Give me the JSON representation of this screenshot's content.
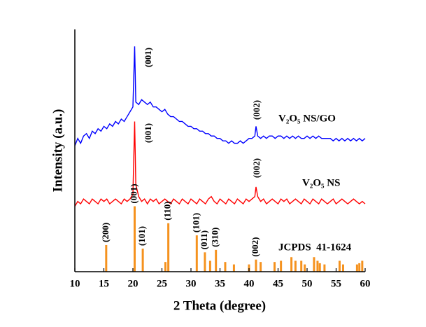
{
  "chart_data": {
    "type": "line",
    "x_label": "2 Theta (degree)",
    "y_label": "Intensity (a.u.)",
    "xlim": [
      10,
      60
    ],
    "xticks": [
      10,
      15,
      20,
      25,
      30,
      35,
      40,
      45,
      50,
      55,
      60
    ],
    "ylim": [
      0,
      100
    ],
    "annotations": [
      "(001)",
      "(002)",
      "(001)",
      "(002)"
    ],
    "x": [
      10,
      10.5,
      11,
      11.5,
      12,
      12.5,
      13,
      13.5,
      14,
      14.5,
      15,
      15.5,
      16,
      16.5,
      17,
      17.5,
      18,
      18.5,
      19,
      19.5,
      20,
      20.3,
      20.5,
      21,
      21.5,
      22,
      22.5,
      23,
      23.5,
      24,
      24.5,
      25,
      25.5,
      26,
      26.5,
      27,
      27.5,
      28,
      28.5,
      29,
      29.5,
      30,
      30.5,
      31,
      31.5,
      32,
      32.5,
      33,
      33.5,
      34,
      34.5,
      35,
      35.5,
      36,
      36.5,
      37,
      37.5,
      38,
      38.5,
      39,
      39.5,
      40,
      40.5,
      41,
      41.2,
      41.5,
      42,
      42.5,
      43,
      43.5,
      44,
      44.5,
      45,
      45.5,
      46,
      46.5,
      47,
      47.5,
      48,
      48.5,
      49,
      49.5,
      50,
      50.5,
      51,
      51.5,
      52,
      52.5,
      53,
      53.5,
      54,
      54.5,
      55,
      55.5,
      56,
      56.5,
      57,
      57.5,
      58,
      58.5,
      59,
      59.5,
      60
    ],
    "series": [
      {
        "name": "V₂O₅ NS/GO",
        "color": "#0000ff",
        "values": [
          52,
          55,
          53,
          56,
          57,
          55,
          58,
          57,
          59,
          58,
          60,
          59,
          61,
          60,
          62,
          61,
          63,
          62,
          64,
          66,
          68,
          93,
          70,
          69,
          71,
          70,
          69,
          70,
          68,
          68,
          67,
          66,
          67,
          65,
          64,
          64,
          63,
          62,
          62,
          61,
          60,
          60,
          59,
          59,
          58,
          58,
          57,
          57,
          56,
          56,
          55,
          55,
          54,
          54,
          53,
          54,
          53,
          53,
          54,
          53,
          54,
          55,
          55,
          56,
          60,
          56,
          55,
          56,
          55,
          56,
          56,
          55,
          56,
          56,
          55,
          56,
          55,
          56,
          55,
          56,
          55,
          55,
          56,
          55,
          56,
          55,
          56,
          55,
          55,
          55,
          55,
          54,
          55,
          54,
          55,
          54,
          55,
          54,
          55,
          54,
          55,
          54,
          55
        ]
      },
      {
        "name": "V₂O₅ NS",
        "color": "#ff0000",
        "values": [
          27,
          29,
          28,
          30,
          29,
          28,
          30,
          29,
          28,
          30,
          29,
          30,
          28,
          29,
          30,
          29,
          28,
          30,
          29,
          30,
          32,
          62,
          36,
          31,
          29,
          30,
          28,
          30,
          29,
          30,
          28,
          29,
          30,
          29,
          28,
          30,
          29,
          28,
          30,
          29,
          28,
          30,
          29,
          28,
          30,
          29,
          28,
          30,
          31,
          29,
          28,
          30,
          29,
          28,
          30,
          29,
          28,
          30,
          29,
          28,
          30,
          29,
          30,
          31,
          35,
          31,
          29,
          30,
          28,
          29,
          30,
          29,
          28,
          30,
          29,
          30,
          28,
          29,
          30,
          29,
          28,
          30,
          29,
          28,
          30,
          29,
          28,
          30,
          29,
          28,
          29,
          30,
          28,
          29,
          30,
          29,
          28,
          29,
          30,
          29,
          28,
          29,
          28
        ]
      },
      {
        "name": "JCPDS  41-1624",
        "color": "#f5921e",
        "type": "stem",
        "x": [
          15.4,
          20.3,
          21.7,
          25.6,
          26.1,
          31.0,
          32.4,
          33.3,
          34.3,
          35.9,
          37.4,
          40.0,
          41.2,
          42.0,
          44.4,
          45.5,
          47.3,
          48.0,
          49.0,
          49.6,
          51.2,
          51.8,
          52.2,
          53.0,
          55.6,
          56.2,
          58.6,
          59.0,
          59.5
        ],
        "values": [
          11,
          27,
          9.5,
          4,
          20,
          15,
          8,
          4.5,
          9,
          4,
          3,
          3,
          5,
          4,
          4,
          4.5,
          6,
          4.5,
          4.5,
          3,
          6,
          4.5,
          3.5,
          3,
          4.5,
          3,
          3,
          3.5,
          4.5
        ],
        "labels": [
          "(200)",
          "(001)",
          "(101)",
          null,
          "(110)",
          "(101)",
          "(011)",
          null,
          "(310)",
          null,
          null,
          null,
          "(002)",
          null,
          null,
          null,
          null,
          null,
          null,
          null,
          null,
          null,
          null,
          null,
          null,
          null,
          null,
          null,
          null
        ]
      }
    ]
  }
}
